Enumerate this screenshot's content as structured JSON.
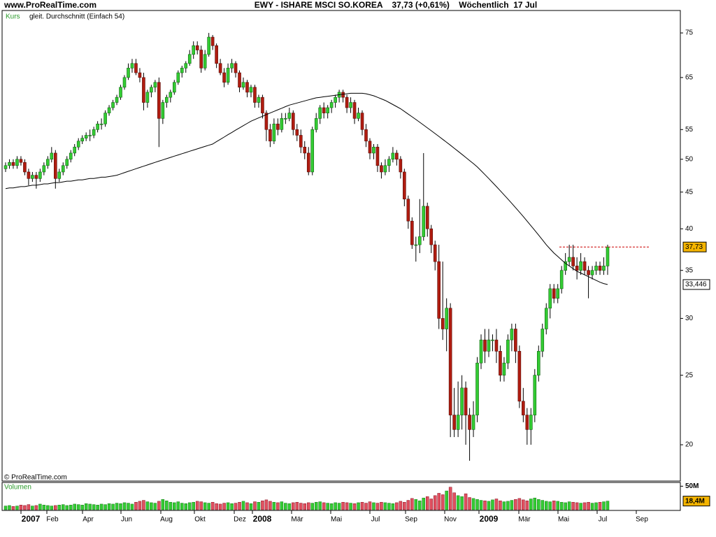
{
  "chart_data": {
    "type": "candlestick",
    "site": "www.ProRealTime.com",
    "title": "EWY - ISHARE MSCI SO.KOREA    37,73 (+0,61%)    Wöchentlich  17 Jul",
    "legend": [
      "Kurs",
      "gleit. Durchschnitt (Einfach 54)"
    ],
    "copyright": "© ProRealTime.com",
    "volume_title": "Volumen",
    "log_scale": true,
    "up_color": "#33cc33",
    "down_color": "#b01c10",
    "ma_color": "#000000",
    "volume_up_color": "#33cc33",
    "volume_down_color": "#e05060",
    "xlabels": [
      "2007",
      "Feb",
      "Apr",
      "Jun",
      "Aug",
      "Okt",
      "Dez",
      "2008",
      "Mär",
      "Mai",
      "Jul",
      "Sep",
      "Nov",
      "2009",
      "Mär",
      "Mai",
      "Jul",
      "Sep"
    ],
    "ylim": [
      17.8,
      80.6
    ],
    "yticks": [
      20,
      25,
      30,
      35,
      40,
      45,
      50,
      55,
      65,
      75
    ],
    "last_price": {
      "value": 37.73,
      "label": "37,73"
    },
    "last_ma": {
      "value": 33.446,
      "label": "33,446"
    },
    "volume_ylim": [
      0,
      55
    ],
    "volume_yticks": [
      {
        "value": 50,
        "label": "50M"
      }
    ],
    "last_volume": {
      "value": 18.4,
      "label": "18,4M"
    },
    "candles": [
      [
        48.5,
        49.5,
        48,
        49
      ],
      [
        49,
        50,
        48.5,
        49.5
      ],
      [
        49.5,
        50,
        48.5,
        49
      ],
      [
        49,
        50.5,
        48.5,
        50
      ],
      [
        50,
        50.5,
        49,
        49.5
      ],
      [
        49.5,
        50,
        47.5,
        48
      ],
      [
        48,
        48.5,
        46,
        47
      ],
      [
        47,
        48,
        46.5,
        47.5
      ],
      [
        47.5,
        48,
        45.5,
        47
      ],
      [
        47,
        48.5,
        46.5,
        48
      ],
      [
        48,
        49.5,
        47.5,
        49
      ],
      [
        49,
        50.5,
        48.5,
        50
      ],
      [
        50,
        52,
        49.5,
        51
      ],
      [
        51,
        51.5,
        45.5,
        47
      ],
      [
        47,
        48.5,
        46.5,
        48
      ],
      [
        48,
        49.5,
        47.5,
        49
      ],
      [
        49,
        50.5,
        48.5,
        50
      ],
      [
        50,
        51.5,
        49.5,
        51
      ],
      [
        51,
        52.5,
        50.5,
        52
      ],
      [
        52,
        53.5,
        51.5,
        53
      ],
      [
        53,
        54,
        52.5,
        53.5
      ],
      [
        53.5,
        54.5,
        53,
        54
      ],
      [
        54,
        55,
        53,
        54
      ],
      [
        54,
        55.5,
        53.5,
        55
      ],
      [
        55,
        56.5,
        54.5,
        56
      ],
      [
        56,
        57,
        55,
        56
      ],
      [
        56,
        58.5,
        55.5,
        58
      ],
      [
        58,
        59.5,
        57.5,
        59
      ],
      [
        59,
        60.5,
        58.5,
        60
      ],
      [
        60,
        61.5,
        59.5,
        61
      ],
      [
        61,
        63.5,
        60.5,
        63
      ],
      [
        63,
        65.5,
        62.5,
        65
      ],
      [
        65,
        68,
        64.5,
        67
      ],
      [
        67,
        69,
        66,
        68
      ],
      [
        68,
        69,
        65.5,
        66
      ],
      [
        66,
        67,
        64,
        65
      ],
      [
        65,
        66,
        58.5,
        60
      ],
      [
        60,
        62.5,
        59,
        62
      ],
      [
        62,
        63.5,
        61,
        63
      ],
      [
        63,
        64.5,
        62,
        64
      ],
      [
        64,
        65,
        52,
        57
      ],
      [
        57,
        60.5,
        56,
        60
      ],
      [
        60,
        61.5,
        59,
        61
      ],
      [
        61,
        62.5,
        60,
        62
      ],
      [
        62,
        64.5,
        61.5,
        64
      ],
      [
        64,
        66.5,
        63.5,
        66
      ],
      [
        66,
        67.5,
        65,
        67
      ],
      [
        67,
        68.5,
        66,
        68
      ],
      [
        68,
        71,
        67.5,
        70
      ],
      [
        70,
        73,
        69,
        72
      ],
      [
        72,
        73,
        70,
        71
      ],
      [
        71,
        72,
        66,
        67
      ],
      [
        67,
        71,
        66.5,
        70
      ],
      [
        70,
        75,
        69.5,
        74
      ],
      [
        74,
        74.5,
        71,
        72
      ],
      [
        72,
        72.5,
        67,
        68
      ],
      [
        68,
        69,
        65.5,
        66
      ],
      [
        66,
        67,
        63,
        64
      ],
      [
        64,
        68,
        63.5,
        67
      ],
      [
        67,
        69,
        66,
        68
      ],
      [
        68,
        68.5,
        65,
        66
      ],
      [
        66,
        66.5,
        62,
        63
      ],
      [
        63,
        65,
        62.5,
        64
      ],
      [
        64,
        64.5,
        61,
        62
      ],
      [
        62,
        63.5,
        61,
        63
      ],
      [
        63,
        63.5,
        59,
        60
      ],
      [
        60,
        61.5,
        59,
        61
      ],
      [
        61,
        61.5,
        57,
        58
      ],
      [
        58,
        58.5,
        53,
        55
      ],
      [
        55,
        56,
        52,
        53
      ],
      [
        53,
        57,
        52.5,
        56
      ],
      [
        56,
        57,
        54,
        55
      ],
      [
        55,
        58,
        54.5,
        57
      ],
      [
        57,
        58,
        56,
        57
      ],
      [
        57,
        59,
        56.5,
        58
      ],
      [
        58,
        58.5,
        54,
        55
      ],
      [
        55,
        56,
        53,
        54
      ],
      [
        54,
        55,
        51,
        52
      ],
      [
        52,
        53,
        50,
        51
      ],
      [
        51,
        52,
        47.5,
        48
      ],
      [
        48,
        55.5,
        47.5,
        55
      ],
      [
        55,
        58,
        54.5,
        57
      ],
      [
        57,
        59.5,
        56,
        59
      ],
      [
        59,
        60,
        57,
        58
      ],
      [
        58,
        59.5,
        57,
        59
      ],
      [
        59,
        60.5,
        58,
        60
      ],
      [
        60,
        61.5,
        59,
        61
      ],
      [
        61,
        62.5,
        60,
        62
      ],
      [
        62,
        62.5,
        60,
        61
      ],
      [
        61,
        61.5,
        58,
        59
      ],
      [
        59,
        61,
        58,
        60
      ],
      [
        60,
        60.5,
        56,
        57
      ],
      [
        57,
        59,
        56.5,
        58
      ],
      [
        58,
        58.5,
        54,
        55
      ],
      [
        55,
        56,
        52,
        53
      ],
      [
        53,
        53.5,
        50,
        51
      ],
      [
        51,
        52.5,
        50,
        52
      ],
      [
        52,
        52.5,
        48,
        49
      ],
      [
        49,
        49.5,
        47,
        48
      ],
      [
        48,
        50,
        47.5,
        49
      ],
      [
        49,
        50.5,
        48,
        50
      ],
      [
        50,
        52,
        49.5,
        51
      ],
      [
        51,
        51.5,
        49,
        50
      ],
      [
        50,
        50.5,
        47,
        48
      ],
      [
        48,
        48.5,
        43,
        44
      ],
      [
        44,
        44.5,
        40,
        41
      ],
      [
        41,
        41.5,
        37.5,
        38
      ],
      [
        38,
        39,
        36,
        38
      ],
      [
        38,
        44,
        37,
        39
      ],
      [
        39,
        51,
        38.5,
        43
      ],
      [
        43,
        43.5,
        39,
        40
      ],
      [
        40,
        40.5,
        37,
        38
      ],
      [
        38,
        38.5,
        35,
        36
      ],
      [
        36,
        38,
        29,
        30
      ],
      [
        30,
        36,
        28,
        29
      ],
      [
        29,
        32,
        27,
        31
      ],
      [
        31,
        31.5,
        20.5,
        22
      ],
      [
        22,
        24,
        20.5,
        21
      ],
      [
        21,
        24.5,
        20.5,
        22
      ],
      [
        22,
        25,
        21,
        24
      ],
      [
        24,
        24.5,
        20,
        22
      ],
      [
        22,
        22.5,
        19,
        21
      ],
      [
        21,
        23,
        20.5,
        22
      ],
      [
        22,
        26.5,
        21.5,
        26
      ],
      [
        26,
        28.5,
        25.5,
        28
      ],
      [
        28,
        29,
        26,
        27
      ],
      [
        27,
        29,
        26.5,
        28
      ],
      [
        28,
        28.5,
        27,
        28
      ],
      [
        28,
        29,
        26,
        27
      ],
      [
        27,
        27.5,
        24.5,
        25
      ],
      [
        25,
        26.5,
        24.5,
        26
      ],
      [
        26,
        28.5,
        25.5,
        28
      ],
      [
        28,
        29.5,
        27,
        29
      ],
      [
        29,
        29.5,
        26,
        27
      ],
      [
        27,
        27.5,
        22.5,
        23
      ],
      [
        23,
        24,
        21.5,
        22
      ],
      [
        22,
        22.5,
        20,
        21
      ],
      [
        21,
        22.5,
        20,
        22
      ],
      [
        22,
        25.5,
        21.5,
        25
      ],
      [
        25,
        27.5,
        24.5,
        27
      ],
      [
        27,
        29.5,
        26.5,
        29
      ],
      [
        29,
        31.5,
        28.5,
        31
      ],
      [
        31,
        33.5,
        30,
        33
      ],
      [
        33,
        33.5,
        31.5,
        32
      ],
      [
        32,
        33.5,
        31.5,
        33
      ],
      [
        33,
        35.5,
        32.5,
        35
      ],
      [
        35,
        37,
        34.5,
        36
      ],
      [
        36,
        38,
        35.5,
        36.5
      ],
      [
        36.5,
        38,
        35,
        35.5
      ],
      [
        35.5,
        36.5,
        34,
        35
      ],
      [
        35,
        37,
        34.5,
        36
      ],
      [
        36,
        36.5,
        34.5,
        35
      ],
      [
        35,
        35.5,
        32,
        34.5
      ],
      [
        34.5,
        35.5,
        34,
        35
      ],
      [
        35,
        36,
        34.5,
        35.5
      ],
      [
        35.5,
        36,
        34.5,
        35
      ],
      [
        35,
        36.5,
        34.5,
        35.5
      ],
      [
        35.5,
        38,
        34.5,
        37.73
      ]
    ],
    "ma": [
      45.5,
      45.6,
      45.6,
      45.7,
      45.8,
      45.8,
      45.9,
      46,
      46,
      46.1,
      46.2,
      46.2,
      46.3,
      46.4,
      46.4,
      46.5,
      46.6,
      46.6,
      46.7,
      46.8,
      46.8,
      46.9,
      47,
      47,
      47.1,
      47.2,
      47.2,
      47.3,
      47.4,
      47.5,
      47.7,
      47.9,
      48.1,
      48.3,
      48.5,
      48.7,
      48.9,
      49.1,
      49.3,
      49.5,
      49.7,
      49.9,
      50.1,
      50.3,
      50.5,
      50.7,
      50.9,
      51.1,
      51.3,
      51.5,
      51.7,
      51.9,
      52.1,
      52.3,
      52.5,
      52.9,
      53.3,
      53.7,
      54.1,
      54.5,
      54.9,
      55.3,
      55.7,
      56.1,
      56.5,
      56.8,
      57.1,
      57.4,
      57.7,
      58,
      58.3,
      58.6,
      58.9,
      59.2,
      59.5,
      59.7,
      59.9,
      60.1,
      60.3,
      60.5,
      60.7,
      60.9,
      61,
      61.1,
      61.2,
      61.3,
      61.4,
      61.5,
      61.6,
      61.7,
      61.8,
      61.8,
      61.8,
      61.8,
      61.7,
      61.5,
      61.3,
      61,
      60.7,
      60.4,
      60,
      59.6,
      59.2,
      58.8,
      58.3,
      57.8,
      57.3,
      56.8,
      56.3,
      55.8,
      55.3,
      54.8,
      54.3,
      53.8,
      53.3,
      52.8,
      52.3,
      51.8,
      51.3,
      50.8,
      50.3,
      49.8,
      49.3,
      48.8,
      48.2,
      47.6,
      47,
      46.4,
      45.8,
      45.2,
      44.6,
      44,
      43.4,
      42.8,
      42.2,
      41.6,
      41,
      40.4,
      39.8,
      39.2,
      38.6,
      38,
      37.5,
      37,
      36.6,
      36.2,
      35.8,
      35.5,
      35.2,
      34.9,
      34.7,
      34.5,
      34.3,
      34.1,
      33.9,
      33.7,
      33.55,
      33.446
    ],
    "volume": [
      8,
      9,
      7,
      8,
      10,
      9,
      11,
      8,
      9,
      12,
      10,
      9,
      8,
      9,
      10,
      11,
      9,
      10,
      12,
      11,
      10,
      13,
      12,
      11,
      10,
      12,
      11,
      13,
      12,
      14,
      13,
      15,
      14,
      12,
      16,
      18,
      20,
      17,
      15,
      14,
      18,
      22,
      19,
      16,
      15,
      17,
      14,
      13,
      15,
      16,
      18,
      17,
      15,
      14,
      16,
      13,
      12,
      14,
      15,
      13,
      14,
      16,
      18,
      15,
      13,
      17,
      16,
      19,
      21,
      18,
      16,
      15,
      17,
      14,
      13,
      15,
      16,
      14,
      13,
      15,
      14,
      16,
      17,
      15,
      14,
      13,
      15,
      14,
      16,
      15,
      14,
      13,
      15,
      16,
      14,
      17,
      15,
      14,
      16,
      15,
      14,
      13,
      15,
      18,
      16,
      20,
      24,
      22,
      19,
      25,
      28,
      23,
      30,
      35,
      32,
      40,
      48,
      36,
      30,
      28,
      34,
      26,
      24,
      22,
      20,
      19,
      18,
      21,
      23,
      19,
      17,
      18,
      20,
      22,
      24,
      21,
      19,
      23,
      25,
      22,
      20,
      18,
      17,
      19,
      18,
      16,
      15,
      17,
      16,
      15,
      14,
      15,
      16,
      14,
      15,
      16,
      17,
      18.4
    ]
  }
}
